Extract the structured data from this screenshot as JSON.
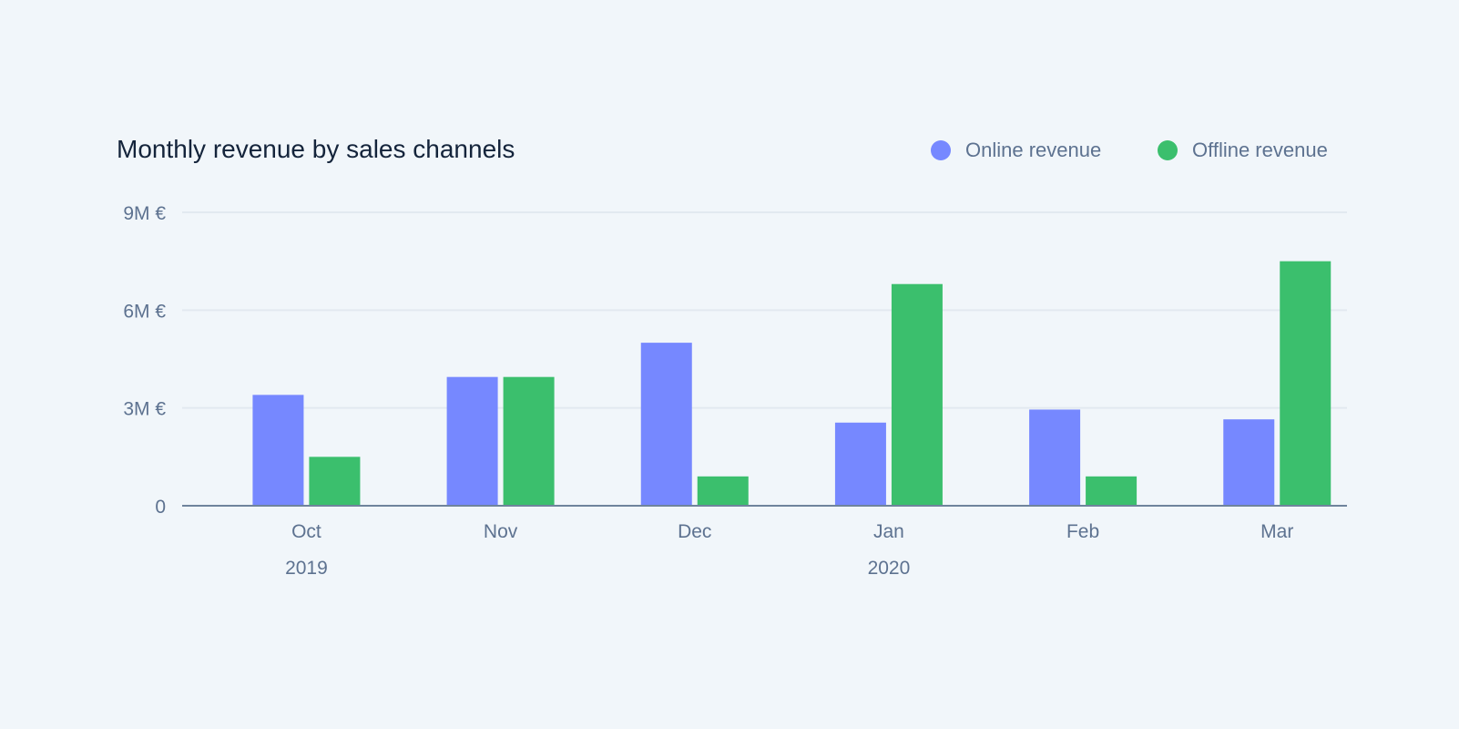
{
  "chart_data": {
    "type": "bar",
    "title": "Monthly revenue by sales channels",
    "categories": [
      "Oct",
      "Nov",
      "Dec",
      "Jan",
      "Feb",
      "Mar"
    ],
    "year_labels": [
      {
        "category": "Oct",
        "label": "2019"
      },
      {
        "category": "Jan",
        "label": "2020"
      }
    ],
    "series": [
      {
        "name": "Online revenue",
        "color": "#7688ff",
        "values": [
          3.4,
          3.95,
          5.0,
          2.55,
          2.95,
          2.65
        ]
      },
      {
        "name": "Offline revenue",
        "color": "#3bbf6d",
        "values": [
          1.5,
          3.95,
          0.9,
          6.8,
          0.9,
          7.5
        ]
      }
    ],
    "ylim": [
      0,
      9
    ],
    "y_ticks": [
      {
        "value": 0,
        "label": "0"
      },
      {
        "value": 3,
        "label": "3M €"
      },
      {
        "value": 6,
        "label": "6M €"
      },
      {
        "value": 9,
        "label": "9M €"
      }
    ],
    "y_unit": "M €",
    "grid": true,
    "legend_position": "top-right"
  }
}
